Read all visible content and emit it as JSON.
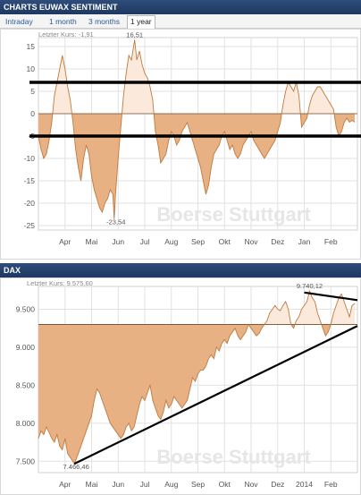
{
  "sentiment": {
    "title": "CHARTS EUWAX SENTIMENT",
    "tabs": [
      "Intraday",
      "1 month",
      "3 months",
      "1 year"
    ],
    "active_tab": "1 year",
    "last_price": "Letzter Kurs: -1,91",
    "watermark": "Boerse Stuttgart"
  },
  "dax": {
    "title": "DAX",
    "last_price": "Letzter Kurs: 9.575,60",
    "watermark": "Boerse Stuttgart"
  },
  "colors": {
    "header": "#1d3760",
    "fill": "#e8b184",
    "line": "#c07a3e",
    "light_fill": "#fbeadb",
    "tab_text": "#2a5a9a"
  },
  "chart_data": [
    {
      "type": "area",
      "title": "CHARTS EUWAX SENTIMENT",
      "baseline": 0,
      "ylim": [
        -26,
        17
      ],
      "yticks": [
        15,
        10,
        5,
        0,
        -5,
        -10,
        -15,
        -20,
        -25
      ],
      "ytick_labels": [
        "15",
        "10",
        "5",
        "0",
        "-5",
        "-10",
        "-15",
        "-20",
        "-25"
      ],
      "xlim": [
        0,
        12
      ],
      "xticks": [
        1,
        2,
        3,
        4,
        5,
        6,
        7,
        8,
        9,
        10,
        11
      ],
      "xtick_labels": [
        "Apr",
        "Mai",
        "Jun",
        "Jul",
        "Aug",
        "Sep",
        "Okt",
        "Nov",
        "Dez",
        "Jan",
        "Feb"
      ],
      "annotations": [
        {
          "x": 3.62,
          "y": 16.51,
          "label": "16,51"
        },
        {
          "x": 2.85,
          "y": -23.54,
          "label": "-23,54"
        }
      ],
      "reference_lines": [
        7,
        -5
      ],
      "x": [
        0.0,
        0.1,
        0.2,
        0.3,
        0.4,
        0.5,
        0.6,
        0.7,
        0.8,
        0.9,
        1.0,
        1.1,
        1.2,
        1.3,
        1.4,
        1.5,
        1.6,
        1.7,
        1.8,
        1.9,
        2.0,
        2.1,
        2.2,
        2.3,
        2.4,
        2.5,
        2.6,
        2.7,
        2.8,
        2.85,
        2.9,
        3.0,
        3.1,
        3.2,
        3.3,
        3.4,
        3.5,
        3.62,
        3.7,
        3.8,
        3.9,
        4.0,
        4.1,
        4.2,
        4.3,
        4.4,
        4.5,
        4.6,
        4.7,
        4.8,
        4.9,
        5.0,
        5.1,
        5.2,
        5.3,
        5.4,
        5.5,
        5.6,
        5.7,
        5.8,
        5.9,
        6.0,
        6.1,
        6.2,
        6.3,
        6.4,
        6.5,
        6.6,
        6.7,
        6.8,
        6.9,
        7.0,
        7.1,
        7.2,
        7.3,
        7.4,
        7.5,
        7.6,
        7.7,
        7.8,
        7.9,
        8.0,
        8.1,
        8.2,
        8.3,
        8.4,
        8.5,
        8.6,
        8.7,
        8.8,
        8.9,
        9.0,
        9.1,
        9.2,
        9.3,
        9.4,
        9.5,
        9.6,
        9.7,
        9.8,
        9.9,
        10.0,
        10.1,
        10.2,
        10.3,
        10.4,
        10.5,
        10.6,
        10.7,
        10.8,
        10.9,
        11.0,
        11.1,
        11.2,
        11.3,
        11.4,
        11.5,
        11.6,
        11.7,
        11.8,
        11.9
      ],
      "y": [
        -5,
        -8,
        -10,
        -9,
        -6,
        -2,
        4,
        7,
        10,
        13,
        10,
        6,
        3,
        -2,
        -8,
        -12,
        -15,
        -10,
        -7,
        -9,
        -14,
        -17,
        -19,
        -21,
        -22,
        -20,
        -19,
        -17,
        -18,
        -23.54,
        -18,
        -10,
        -3,
        4,
        9,
        13,
        12,
        16.51,
        12,
        14,
        11,
        9,
        8,
        6,
        3,
        -4,
        -7,
        -11,
        -10,
        -9,
        -6,
        -4,
        -5,
        -7,
        -6,
        -4,
        -3,
        -2,
        -4,
        -6,
        -8,
        -10,
        -12,
        -15,
        -18,
        -16,
        -12,
        -9,
        -8,
        -7,
        -5,
        -4,
        -6,
        -8,
        -7,
        -9,
        -10,
        -9,
        -7,
        -6,
        -5,
        -4,
        -6,
        -7,
        -8,
        -9,
        -10,
        -9,
        -8,
        -7,
        -6,
        -4,
        -2,
        2,
        5,
        7,
        6,
        5,
        7,
        4,
        -3,
        -2,
        -1,
        2,
        4,
        5,
        6,
        6,
        5,
        4,
        3,
        2,
        1,
        -3,
        -5,
        -4,
        -2,
        -1,
        -1.91,
        -1.5,
        -1.91
      ],
      "watermark": "Boerse Stuttgart"
    },
    {
      "type": "area",
      "title": "DAX",
      "baseline": 9300,
      "ylim": [
        7350,
        9800
      ],
      "yticks": [
        9500,
        9000,
        8500,
        8000,
        7500
      ],
      "ytick_labels": [
        "9.500",
        "9.000",
        "8.500",
        "8.000",
        "7.500"
      ],
      "xlim": [
        0,
        12
      ],
      "xticks": [
        1,
        2,
        3,
        4,
        5,
        6,
        7,
        8,
        9,
        10,
        11
      ],
      "xtick_labels": [
        "Apr",
        "Mai",
        "Jun",
        "Jul",
        "Aug",
        "Sep",
        "Okt",
        "Nov",
        "Dez",
        "2014",
        "Feb"
      ],
      "annotations": [
        {
          "x": 1.35,
          "y": 7466.46,
          "label": "7.466,46"
        },
        {
          "x": 10.2,
          "y": 9740.12,
          "label": "9.740,12"
        }
      ],
      "x": [
        0.0,
        0.1,
        0.2,
        0.3,
        0.4,
        0.5,
        0.6,
        0.7,
        0.8,
        0.9,
        1.0,
        1.1,
        1.2,
        1.35,
        1.5,
        1.6,
        1.7,
        1.8,
        1.9,
        2.0,
        2.1,
        2.2,
        2.3,
        2.4,
        2.5,
        2.6,
        2.7,
        2.8,
        2.9,
        3.0,
        3.1,
        3.2,
        3.3,
        3.4,
        3.5,
        3.6,
        3.7,
        3.8,
        3.9,
        4.0,
        4.1,
        4.2,
        4.3,
        4.4,
        4.5,
        4.6,
        4.7,
        4.8,
        4.9,
        5.0,
        5.1,
        5.2,
        5.3,
        5.4,
        5.5,
        5.6,
        5.7,
        5.8,
        5.9,
        6.0,
        6.1,
        6.2,
        6.3,
        6.4,
        6.5,
        6.6,
        6.7,
        6.8,
        6.9,
        7.0,
        7.1,
        7.2,
        7.3,
        7.4,
        7.5,
        7.6,
        7.7,
        7.8,
        7.9,
        8.0,
        8.1,
        8.2,
        8.3,
        8.4,
        8.5,
        8.6,
        8.7,
        8.8,
        8.9,
        9.0,
        9.1,
        9.2,
        9.3,
        9.4,
        9.5,
        9.6,
        9.7,
        9.8,
        9.9,
        10.0,
        10.1,
        10.2,
        10.3,
        10.4,
        10.5,
        10.6,
        10.7,
        10.8,
        10.9,
        11.0,
        11.1,
        11.2,
        11.3,
        11.4,
        11.5,
        11.6,
        11.7,
        11.8,
        11.9
      ],
      "y": [
        7800,
        7900,
        7850,
        7950,
        7880,
        7800,
        7750,
        7850,
        7700,
        7650,
        7800,
        7600,
        7550,
        7466.46,
        7600,
        7700,
        7800,
        7900,
        8000,
        8100,
        8300,
        8450,
        8400,
        8300,
        8200,
        8100,
        8000,
        7950,
        7900,
        7850,
        7800,
        7850,
        7950,
        8000,
        7900,
        7950,
        8100,
        8250,
        8350,
        8300,
        8400,
        8500,
        8300,
        8200,
        8100,
        8050,
        8150,
        8300,
        8200,
        8250,
        8350,
        8300,
        8250,
        8200,
        8250,
        8300,
        8450,
        8600,
        8550,
        8650,
        8700,
        8700,
        8750,
        8850,
        8900,
        8850,
        9000,
        8950,
        9050,
        9100,
        9050,
        9150,
        9200,
        9250,
        9150,
        9100,
        9150,
        9200,
        9300,
        9250,
        9200,
        9150,
        9180,
        9250,
        9300,
        9350,
        9450,
        9500,
        9550,
        9500,
        9480,
        9550,
        9600,
        9500,
        9300,
        9250,
        9350,
        9400,
        9500,
        9550,
        9600,
        9740.12,
        9650,
        9600,
        9450,
        9350,
        9250,
        9150,
        9200,
        9300,
        9450,
        9550,
        9650,
        9700,
        9600,
        9500,
        9400,
        9550,
        9575.6
      ],
      "trendlines": [
        {
          "from": [
            1.35,
            7466.46
          ],
          "to": [
            12,
            9280
          ]
        },
        {
          "from": [
            10.0,
            9720
          ],
          "to": [
            12,
            9620
          ]
        }
      ],
      "watermark": "Boerse Stuttgart"
    }
  ]
}
